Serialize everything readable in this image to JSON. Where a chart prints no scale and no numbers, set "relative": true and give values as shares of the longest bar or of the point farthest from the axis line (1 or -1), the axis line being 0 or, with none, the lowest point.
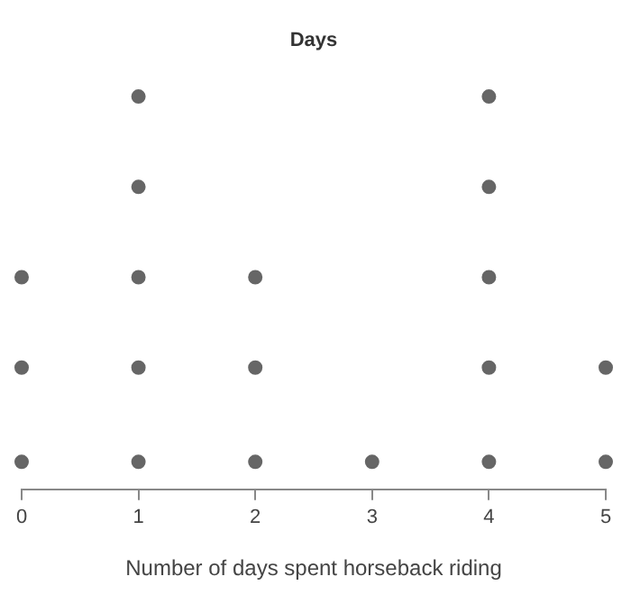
{
  "chart_data": {
    "type": "scatter",
    "title": "Days",
    "xlabel": "Number of days spent horseback riding",
    "x": [
      0,
      0,
      0,
      1,
      1,
      1,
      1,
      1,
      2,
      2,
      2,
      3,
      4,
      4,
      4,
      4,
      4,
      5,
      5
    ],
    "series": [
      {
        "color": "#666666",
        "values": [
          0.07,
          0.31,
          0.54,
          0.07,
          0.31,
          0.54,
          0.77,
          1,
          0.07,
          0.31,
          0.54,
          0.07,
          0.07,
          0.31,
          0.54,
          0.77,
          1,
          0.07,
          0.31
        ]
      }
    ],
    "xlim": [
      0,
      5
    ],
    "xticks": [
      0,
      1,
      2,
      3,
      4,
      5
    ],
    "relative": true,
    "tick_labels": "x",
    "grid": false,
    "legend": false,
    "marker": "circle"
  }
}
